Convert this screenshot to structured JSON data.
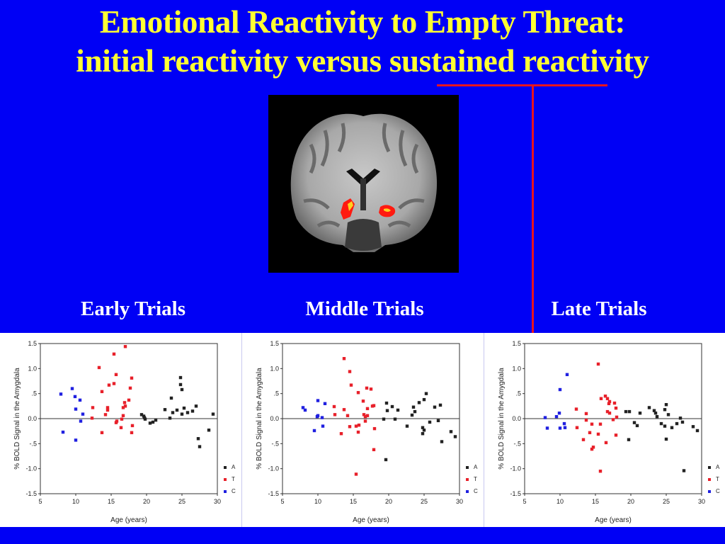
{
  "title": {
    "line1": "Emotional Reactivity to Empty Threat:",
    "line2": "initial reactivity versus sustained reactivity"
  },
  "colors": {
    "background": "#0000f5",
    "title": "#ffff33",
    "annotation": "#e8141e",
    "A": "#222222",
    "T": "#e8202a",
    "C": "#2020e0"
  },
  "image": {
    "description": "coronal MRI brain slice with bilateral amygdala activation in red/yellow"
  },
  "panels": [
    {
      "label": "Early Trials"
    },
    {
      "label": "Middle Trials"
    },
    {
      "label": "Late Trials"
    }
  ],
  "chart_data": [
    {
      "type": "scatter",
      "title": "Early Trials",
      "xlabel": "Age (years)",
      "ylabel": "% BOLD Signal in the Amygdala",
      "xlim": [
        5,
        30
      ],
      "ylim": [
        -1.5,
        1.5
      ],
      "xticks": [
        "5",
        "10",
        "15",
        "20",
        "25",
        "30"
      ],
      "yticks": [
        "1.5",
        "1.0",
        ".5",
        "0.0",
        "-.5",
        "-1.0",
        "-1.5"
      ],
      "reference_line_y": 0,
      "legend": [
        "A",
        "T",
        "C"
      ],
      "legend_position": "right-bottom",
      "series": [
        {
          "name": "C",
          "points": [
            [
              7.9,
              0.49
            ],
            [
              8.2,
              -0.27
            ],
            [
              9.5,
              0.6
            ],
            [
              9.9,
              0.44
            ],
            [
              10.0,
              0.19
            ],
            [
              10.0,
              -0.43
            ],
            [
              10.6,
              0.37
            ],
            [
              10.7,
              -0.05
            ],
            [
              11.0,
              0.09
            ]
          ]
        },
        {
          "name": "T",
          "points": [
            [
              12.3,
              0.01
            ],
            [
              12.4,
              0.22
            ],
            [
              13.3,
              1.02
            ],
            [
              13.7,
              0.54
            ],
            [
              13.7,
              -0.28
            ],
            [
              14.2,
              0.08
            ],
            [
              14.5,
              0.22
            ],
            [
              14.5,
              0.17
            ],
            [
              14.7,
              0.67
            ],
            [
              15.4,
              1.29
            ],
            [
              15.4,
              0.7
            ],
            [
              15.7,
              0.88
            ],
            [
              15.7,
              -0.08
            ],
            [
              15.8,
              -0.05
            ],
            [
              16.4,
              -0.18
            ],
            [
              16.5,
              -0.01
            ],
            [
              16.7,
              0.22
            ],
            [
              16.7,
              0.06
            ],
            [
              16.9,
              0.32
            ],
            [
              17.0,
              1.44
            ],
            [
              17.0,
              0.25
            ],
            [
              17.5,
              0.37
            ],
            [
              17.7,
              0.61
            ],
            [
              17.9,
              0.81
            ],
            [
              17.9,
              -0.28
            ],
            [
              18.0,
              -0.14
            ]
          ]
        },
        {
          "name": "A",
          "points": [
            [
              19.3,
              0.08
            ],
            [
              19.6,
              0.05
            ],
            [
              19.7,
              0.02
            ],
            [
              19.8,
              -0.01
            ],
            [
              20.5,
              -0.09
            ],
            [
              20.9,
              -0.07
            ],
            [
              21.3,
              -0.03
            ],
            [
              22.6,
              0.18
            ],
            [
              23.3,
              0.01
            ],
            [
              23.5,
              0.41
            ],
            [
              23.7,
              0.12
            ],
            [
              24.3,
              0.17
            ],
            [
              24.8,
              0.82
            ],
            [
              24.8,
              0.68
            ],
            [
              25.0,
              0.58
            ],
            [
              25.0,
              0.09
            ],
            [
              25.3,
              0.21
            ],
            [
              25.8,
              0.12
            ],
            [
              26.5,
              0.15
            ],
            [
              27.0,
              0.25
            ],
            [
              27.3,
              -0.4
            ],
            [
              27.5,
              -0.56
            ],
            [
              28.8,
              -0.23
            ],
            [
              29.4,
              0.09
            ]
          ]
        }
      ]
    },
    {
      "type": "scatter",
      "title": "Middle Trials",
      "xlabel": "Age (years)",
      "ylabel": "% BOLD Signal in the Amygdala",
      "xlim": [
        5,
        30
      ],
      "ylim": [
        -1.5,
        1.5
      ],
      "xticks": [
        "5",
        "10",
        "15",
        "20",
        "25",
        "30"
      ],
      "yticks": [
        "1.5",
        "1.0",
        ".5",
        "0.0",
        "-.5",
        "-1.0",
        "-1.5"
      ],
      "reference_line_y": 0,
      "legend": [
        "A",
        "T",
        "C"
      ],
      "legend_position": "right-bottom",
      "series": [
        {
          "name": "C",
          "points": [
            [
              7.9,
              0.22
            ],
            [
              8.2,
              0.17
            ],
            [
              9.5,
              -0.24
            ],
            [
              9.9,
              0.04
            ],
            [
              10.0,
              0.06
            ],
            [
              10.0,
              0.36
            ],
            [
              10.6,
              0.02
            ],
            [
              10.7,
              -0.15
            ],
            [
              11.0,
              0.3
            ]
          ]
        },
        {
          "name": "T",
          "points": [
            [
              12.3,
              0.24
            ],
            [
              12.4,
              0.08
            ],
            [
              13.3,
              -0.3
            ],
            [
              13.7,
              1.2
            ],
            [
              13.7,
              0.18
            ],
            [
              14.2,
              0.06
            ],
            [
              14.5,
              0.94
            ],
            [
              14.5,
              -0.16
            ],
            [
              14.7,
              0.67
            ],
            [
              15.4,
              -0.15
            ],
            [
              15.4,
              -1.11
            ],
            [
              15.7,
              0.52
            ],
            [
              15.7,
              -0.27
            ],
            [
              15.8,
              -0.13
            ],
            [
              16.4,
              0.35
            ],
            [
              16.5,
              0.08
            ],
            [
              16.7,
              0.04
            ],
            [
              16.7,
              -0.05
            ],
            [
              16.9,
              0.61
            ],
            [
              17.0,
              0.2
            ],
            [
              17.0,
              0.06
            ],
            [
              17.5,
              0.59
            ],
            [
              17.7,
              0.25
            ],
            [
              17.9,
              0.26
            ],
            [
              17.9,
              -0.62
            ],
            [
              18.0,
              -0.2
            ]
          ]
        },
        {
          "name": "A",
          "points": [
            [
              19.3,
              -0.01
            ],
            [
              19.6,
              -0.82
            ],
            [
              19.7,
              0.31
            ],
            [
              19.8,
              0.16
            ],
            [
              20.5,
              0.24
            ],
            [
              20.9,
              -0.01
            ],
            [
              21.3,
              0.17
            ],
            [
              22.6,
              -0.15
            ],
            [
              23.3,
              0.07
            ],
            [
              23.5,
              0.23
            ],
            [
              23.7,
              0.14
            ],
            [
              24.3,
              0.32
            ],
            [
              24.8,
              -0.18
            ],
            [
              24.8,
              -0.3
            ],
            [
              25.0,
              -0.23
            ],
            [
              25.0,
              0.38
            ],
            [
              25.3,
              0.5
            ],
            [
              25.8,
              -0.07
            ],
            [
              26.5,
              0.23
            ],
            [
              27.0,
              -0.04
            ],
            [
              27.3,
              0.27
            ],
            [
              27.5,
              -0.46
            ],
            [
              28.8,
              -0.26
            ],
            [
              29.4,
              -0.36
            ]
          ]
        }
      ]
    },
    {
      "type": "scatter",
      "title": "Late Trials",
      "xlabel": "Age (years)",
      "ylabel": "% BOLD Signal in the Amygdala",
      "xlim": [
        5,
        30
      ],
      "ylim": [
        -1.5,
        1.5
      ],
      "xticks": [
        "5",
        "10",
        "15",
        "20",
        "25",
        "30"
      ],
      "yticks": [
        "1.5",
        "1.0",
        ".5",
        "0.0",
        "-.5",
        "-1.0",
        "-1.5"
      ],
      "reference_line_y": 0,
      "legend": [
        "A",
        "T",
        "C"
      ],
      "legend_position": "right-bottom",
      "series": [
        {
          "name": "C",
          "points": [
            [
              7.9,
              0.02
            ],
            [
              8.2,
              -0.19
            ],
            [
              9.5,
              0.04
            ],
            [
              9.9,
              0.11
            ],
            [
              10.0,
              0.58
            ],
            [
              10.0,
              -0.19
            ],
            [
              10.6,
              -0.1
            ],
            [
              10.7,
              -0.18
            ],
            [
              11.0,
              0.88
            ]
          ]
        },
        {
          "name": "T",
          "points": [
            [
              12.3,
              0.19
            ],
            [
              12.4,
              -0.18
            ],
            [
              13.3,
              -0.42
            ],
            [
              13.7,
              0.1
            ],
            [
              13.7,
              -0.03
            ],
            [
              14.2,
              -0.28
            ],
            [
              14.5,
              -0.11
            ],
            [
              14.5,
              -0.61
            ],
            [
              14.7,
              -0.57
            ],
            [
              15.4,
              1.09
            ],
            [
              15.4,
              -0.31
            ],
            [
              15.7,
              -1.05
            ],
            [
              15.7,
              -0.11
            ],
            [
              15.8,
              0.4
            ],
            [
              16.4,
              0.45
            ],
            [
              16.5,
              -0.48
            ],
            [
              16.7,
              0.4
            ],
            [
              16.7,
              0.14
            ],
            [
              16.9,
              0.3
            ],
            [
              17.0,
              0.34
            ],
            [
              17.0,
              0.11
            ],
            [
              17.5,
              -0.02
            ],
            [
              17.7,
              0.31
            ],
            [
              17.9,
              0.21
            ],
            [
              17.9,
              -0.33
            ],
            [
              18.0,
              0.03
            ]
          ]
        },
        {
          "name": "A",
          "points": [
            [
              19.3,
              0.14
            ],
            [
              19.7,
              -0.42
            ],
            [
              19.8,
              0.14
            ],
            [
              20.5,
              -0.08
            ],
            [
              20.9,
              -0.14
            ],
            [
              21.3,
              0.11
            ],
            [
              22.6,
              0.22
            ],
            [
              23.3,
              0.16
            ],
            [
              23.5,
              0.11
            ],
            [
              23.7,
              0.04
            ],
            [
              24.3,
              -0.1
            ],
            [
              24.8,
              0.18
            ],
            [
              24.8,
              -0.15
            ],
            [
              25.0,
              0.28
            ],
            [
              25.0,
              -0.41
            ],
            [
              25.3,
              0.08
            ],
            [
              25.8,
              -0.18
            ],
            [
              26.5,
              -0.1
            ],
            [
              27.0,
              0.01
            ],
            [
              27.3,
              -0.07
            ],
            [
              27.5,
              -1.04
            ],
            [
              28.8,
              -0.16
            ],
            [
              29.4,
              -0.24
            ]
          ]
        }
      ]
    }
  ]
}
